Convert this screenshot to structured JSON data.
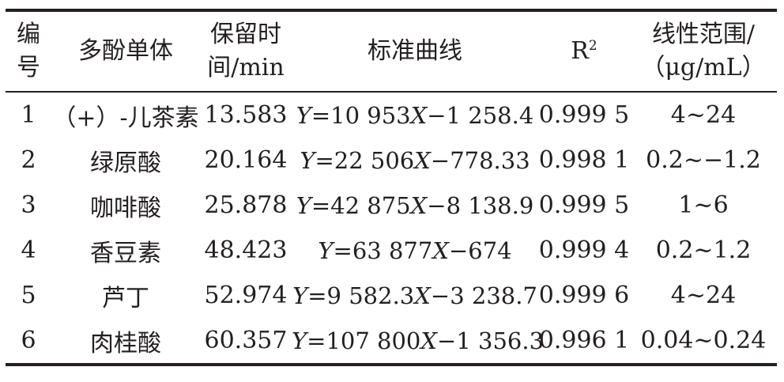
{
  "table": {
    "headers": {
      "id_line1": "编",
      "id_line2": "号",
      "compound": "多酚单体",
      "rt_line1": "保留时",
      "rt_line2": "间/min",
      "curve": "标准曲线",
      "r2_base": "R",
      "r2_sup": "2",
      "range_line1": "线性范围/",
      "range_line2": "（μg/mL）"
    },
    "rows": [
      {
        "id": "1",
        "compound": "（+）-儿茶素",
        "retention_time": "13.583",
        "eq_y": "Y",
        "eq_a": "=10 953",
        "eq_x": "X",
        "eq_b": "−1 258.4",
        "r2": "0.999 5",
        "range": "4~24"
      },
      {
        "id": "2",
        "compound": "绿原酸",
        "retention_time": "20.164",
        "eq_y": "Y",
        "eq_a": "=22 506",
        "eq_x": "X",
        "eq_b": "−778.33",
        "r2": "0.998 1",
        "range": "0.2~−1.2"
      },
      {
        "id": "3",
        "compound": "咖啡酸",
        "retention_time": "25.878",
        "eq_y": "Y",
        "eq_a": "=42 875",
        "eq_x": "X",
        "eq_b": "−8 138.9",
        "r2": "0.999 5",
        "range": "1~6"
      },
      {
        "id": "4",
        "compound": "香豆素",
        "retention_time": "48.423",
        "eq_y": "Y",
        "eq_a": "=63 877",
        "eq_x": "X",
        "eq_b": "−674",
        "r2": "0.999 4",
        "range": "0.2~1.2"
      },
      {
        "id": "5",
        "compound": "芦丁",
        "retention_time": "52.974",
        "eq_y": "Y",
        "eq_a": "=9 582.3",
        "eq_x": "X",
        "eq_b": "−3 238.7",
        "r2": "0.999 6",
        "range": "4~24"
      },
      {
        "id": "6",
        "compound": "肉桂酸",
        "retention_time": "60.357",
        "eq_y": "Y",
        "eq_a": "=107 800",
        "eq_x": "X",
        "eq_b": "−1 356.3",
        "r2": "0.996 1",
        "range": "0.04~0.24"
      }
    ]
  }
}
